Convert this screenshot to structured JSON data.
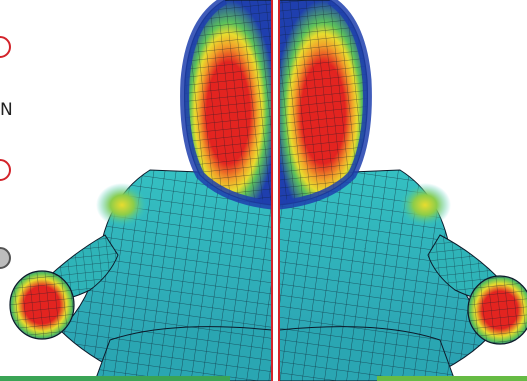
{
  "side_text": "N",
  "colors": {
    "mesh_line": "#0c1a2a",
    "outer_blue": "#1f3fae",
    "teal": "#2fb4b8",
    "cyan": "#31c7c4",
    "green": "#5cc25a",
    "yellow": "#e8dc2e",
    "orange": "#f2a32a",
    "red": "#e32420",
    "divider_red": "#d3232a",
    "accent_green": "#3aa455"
  },
  "legend_markers": [
    "marker-red-outline",
    "marker-red-outline",
    "marker-gray-filled"
  ]
}
